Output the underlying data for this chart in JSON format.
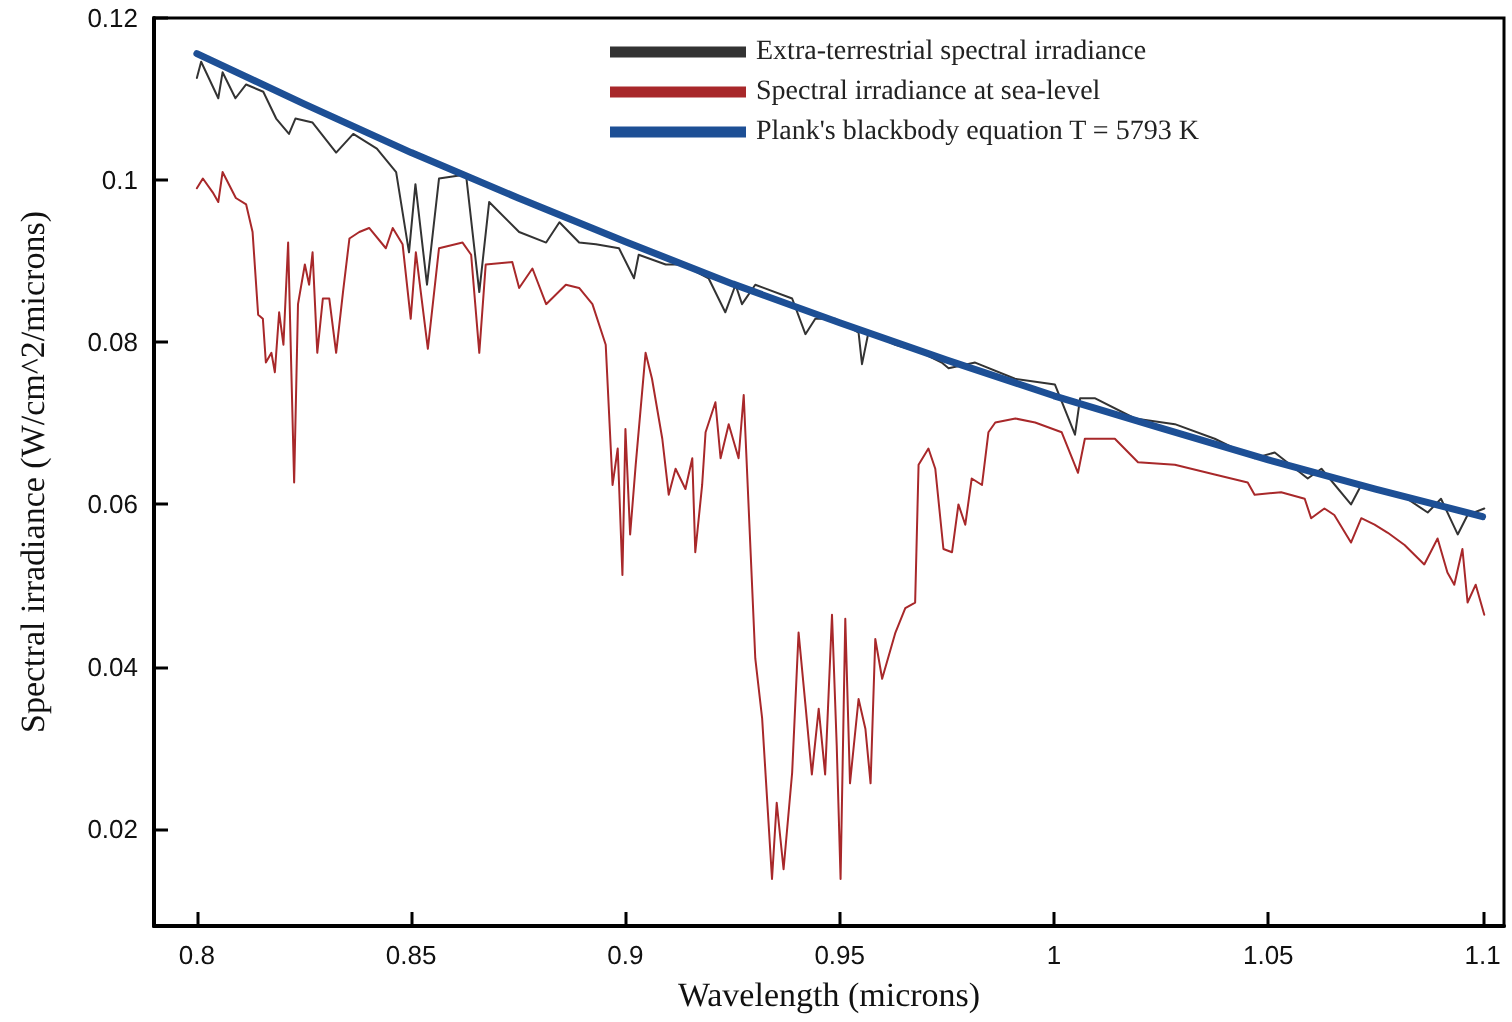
{
  "chart_data": {
    "type": "line",
    "xlabel": "Wavelength (microns)",
    "ylabel": "Spectral irradiance (W/cm^2/microns)",
    "xlim": [
      0.79,
      1.105
    ],
    "ylim": [
      0.008,
      0.12
    ],
    "xticks": [
      0.8,
      0.85,
      0.9,
      0.95,
      1,
      1.05,
      1.1
    ],
    "yticks": [
      0.02,
      0.04,
      0.06,
      0.08,
      0.1,
      0.12
    ],
    "grid": false,
    "legend": "top right",
    "marker": "none",
    "line_style": "solid",
    "series": [
      {
        "name": "Extra-terrestrial spectral irradiance",
        "color": "#333333",
        "x": [
          0.8,
          0.801,
          0.805,
          0.806,
          0.809,
          0.8115,
          0.8155,
          0.8185,
          0.8215,
          0.823,
          0.827,
          0.8325,
          0.8365,
          0.842,
          0.8465,
          0.8495,
          0.851,
          0.8537,
          0.8565,
          0.8628,
          0.8659,
          0.8682,
          0.8752,
          0.8815,
          0.8846,
          0.8892,
          0.8931,
          0.8985,
          0.902,
          0.9031,
          0.9094,
          0.9132,
          0.9194,
          0.9233,
          0.9257,
          0.9272,
          0.9303,
          0.9389,
          0.942,
          0.9443,
          0.949,
          0.9544,
          0.9552,
          0.9567,
          0.963,
          0.9692,
          0.9738,
          0.9754,
          0.9816,
          0.9909,
          1.0002,
          1.0049,
          1.0061,
          1.0095,
          1.0189,
          1.0282,
          1.0375,
          1.0468,
          1.0515,
          1.0592,
          1.0624,
          1.0693,
          1.0717,
          1.081,
          1.0872,
          1.0903,
          1.0942,
          1.0965,
          1.1004
        ],
        "values": [
          0.1126,
          0.1146,
          0.1101,
          0.1133,
          0.1101,
          0.1118,
          0.1109,
          0.1076,
          0.1057,
          0.1076,
          0.1071,
          0.1034,
          0.1057,
          0.1039,
          0.101,
          0.0911,
          0.0995,
          0.0871,
          0.1002,
          0.1007,
          0.0862,
          0.0973,
          0.0936,
          0.0923,
          0.0948,
          0.0923,
          0.0921,
          0.0916,
          0.0879,
          0.0908,
          0.0896,
          0.0896,
          0.0879,
          0.0837,
          0.0871,
          0.0847,
          0.0871,
          0.0854,
          0.081,
          0.0829,
          0.0829,
          0.0812,
          0.0773,
          0.0812,
          0.0797,
          0.0787,
          0.0775,
          0.0768,
          0.0775,
          0.0755,
          0.0748,
          0.0686,
          0.0731,
          0.0731,
          0.0706,
          0.0699,
          0.0681,
          0.0657,
          0.0664,
          0.0632,
          0.0644,
          0.06,
          0.0624,
          0.0612,
          0.059,
          0.0607,
          0.0563,
          0.0587,
          0.0595
        ]
      },
      {
        "name": "Spectral irradiance at sea-level",
        "color": "#a8282a",
        "x": [
          0.8,
          0.8014,
          0.8037,
          0.805,
          0.806,
          0.8091,
          0.8115,
          0.813,
          0.8143,
          0.8154,
          0.8161,
          0.8174,
          0.8182,
          0.8192,
          0.8202,
          0.8213,
          0.8227,
          0.8236,
          0.8252,
          0.8262,
          0.827,
          0.8281,
          0.8294,
          0.8309,
          0.8325,
          0.8341,
          0.8356,
          0.8379,
          0.8402,
          0.8441,
          0.8457,
          0.848,
          0.8499,
          0.8511,
          0.8539,
          0.8565,
          0.862,
          0.864,
          0.8659,
          0.8674,
          0.8736,
          0.8752,
          0.8783,
          0.8815,
          0.8861,
          0.8892,
          0.8923,
          0.8954,
          0.897,
          0.8982,
          0.8993,
          0.9,
          0.9011,
          0.9024,
          0.9047,
          0.9062,
          0.9086,
          0.9101,
          0.9117,
          0.914,
          0.9156,
          0.9163,
          0.9179,
          0.9187,
          0.921,
          0.9222,
          0.9241,
          0.9264,
          0.9276,
          0.9303,
          0.9319,
          0.9342,
          0.9353,
          0.9369,
          0.9389,
          0.9404,
          0.942,
          0.9435,
          0.9451,
          0.9466,
          0.9482,
          0.9493,
          0.9502,
          0.9513,
          0.9524,
          0.9544,
          0.956,
          0.9572,
          0.9583,
          0.9599,
          0.963,
          0.9653,
          0.9676,
          0.9684,
          0.9707,
          0.9723,
          0.9742,
          0.9762,
          0.9777,
          0.9793,
          0.9808,
          0.9832,
          0.9847,
          0.9863,
          0.991,
          0.9956,
          1.0018,
          1.0056,
          1.0072,
          1.0142,
          1.0196,
          1.0282,
          1.0375,
          1.0452,
          1.0468,
          1.053,
          1.0585,
          1.06,
          1.0631,
          1.0654,
          1.0693,
          1.0717,
          1.0748,
          1.0779,
          1.0818,
          1.0864,
          1.0895,
          1.0918,
          1.0934,
          1.0953,
          1.0965,
          1.0984,
          1.1004
        ],
        "values": [
          0.099,
          0.1002,
          0.0985,
          0.0973,
          0.101,
          0.0978,
          0.097,
          0.0936,
          0.0834,
          0.0829,
          0.0775,
          0.0787,
          0.0763,
          0.0837,
          0.0797,
          0.0923,
          0.0627,
          0.0847,
          0.0896,
          0.0871,
          0.0911,
          0.0787,
          0.0854,
          0.0854,
          0.0787,
          0.0862,
          0.0928,
          0.0936,
          0.0941,
          0.0916,
          0.0941,
          0.0921,
          0.0829,
          0.0911,
          0.0792,
          0.0916,
          0.0923,
          0.0908,
          0.0787,
          0.0896,
          0.0899,
          0.0867,
          0.0891,
          0.0847,
          0.0871,
          0.0867,
          0.0847,
          0.0797,
          0.0624,
          0.0669,
          0.0513,
          0.0693,
          0.0563,
          0.0649,
          0.0787,
          0.0755,
          0.0681,
          0.0612,
          0.0644,
          0.0619,
          0.0657,
          0.0541,
          0.0624,
          0.0689,
          0.0726,
          0.0657,
          0.0699,
          0.0657,
          0.0735,
          0.041,
          0.0336,
          0.0138,
          0.0232,
          0.015,
          0.0269,
          0.0442,
          0.0353,
          0.0267,
          0.0348,
          0.0267,
          0.0464,
          0.0303,
          0.0138,
          0.0459,
          0.0256,
          0.036,
          0.0323,
          0.0256,
          0.0434,
          0.0385,
          0.0442,
          0.0472,
          0.0479,
          0.0649,
          0.0669,
          0.0644,
          0.0545,
          0.0541,
          0.06,
          0.0575,
          0.0632,
          0.0624,
          0.0689,
          0.0701,
          0.0706,
          0.0701,
          0.0689,
          0.0639,
          0.0681,
          0.0681,
          0.0652,
          0.0649,
          0.0637,
          0.0627,
          0.0612,
          0.0615,
          0.0607,
          0.0583,
          0.0595,
          0.0587,
          0.0553,
          0.0583,
          0.0575,
          0.0565,
          0.055,
          0.0526,
          0.0558,
          0.0516,
          0.0501,
          0.0545,
          0.0479,
          0.0501,
          0.0464
        ]
      },
      {
        "name": "Plank's blackbody equation T = 5793 K",
        "color": "#1d4f95",
        "x": [
          0.8,
          0.825,
          0.85,
          0.875,
          0.9,
          0.925,
          0.95,
          0.975,
          1,
          1.025,
          1.05,
          1.075,
          1.1
        ],
        "values": [
          0.1156,
          0.1094,
          0.1034,
          0.0978,
          0.0924,
          0.0872,
          0.0824,
          0.0778,
          0.0734,
          0.0694,
          0.0655,
          0.0619,
          0.0585
        ]
      }
    ]
  }
}
